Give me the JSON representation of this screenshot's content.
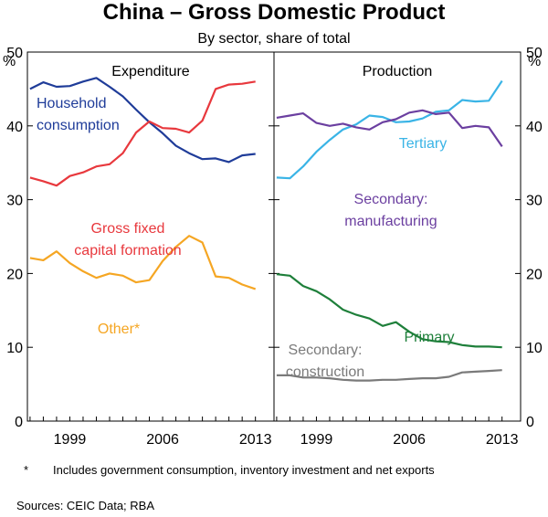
{
  "chart_data": {
    "type": "line",
    "title": "China – Gross Domestic Product",
    "subtitle": "By sector, share of total",
    "ylabel_left": "%",
    "ylabel_right": "%",
    "ylim": [
      0,
      50
    ],
    "yticks": [
      "0",
      "10",
      "20",
      "30",
      "40",
      "50"
    ],
    "xticks": [
      "1999",
      "2006",
      "2013"
    ],
    "xtick_values": [
      1999,
      2006,
      2013
    ],
    "xlim": [
      1995.8,
      2014.4
    ],
    "panels": [
      {
        "title": "Expenditure",
        "series": [
          {
            "name": "Household consumption",
            "label_lines": [
              "Household",
              "consumption"
            ],
            "color": "#1f3c99",
            "x": [
              1996,
              1997,
              1998,
              1999,
              2000,
              2001,
              2002,
              2003,
              2004,
              2005,
              2006,
              2007,
              2008,
              2009,
              2010,
              2011,
              2012,
              2013
            ],
            "values": [
              45.0,
              45.9,
              45.3,
              45.4,
              46.0,
              46.5,
              45.3,
              44.0,
              42.2,
              40.5,
              39.0,
              37.3,
              36.3,
              35.5,
              35.6,
              35.1,
              36.0,
              36.2
            ]
          },
          {
            "name": "Gross fixed capital formation",
            "label_lines": [
              "Gross fixed",
              "capital formation"
            ],
            "color": "#e8383d",
            "x": [
              1996,
              1997,
              1998,
              1999,
              2000,
              2001,
              2002,
              2003,
              2004,
              2005,
              2006,
              2007,
              2008,
              2009,
              2010,
              2011,
              2012,
              2013
            ],
            "values": [
              33.0,
              32.5,
              31.9,
              33.2,
              33.7,
              34.5,
              34.8,
              36.3,
              39.1,
              40.6,
              39.7,
              39.6,
              39.1,
              40.7,
              45.0,
              45.6,
              45.7,
              46.0
            ]
          },
          {
            "name": "Other*",
            "label_lines": [
              "Other*"
            ],
            "color": "#f5a623",
            "x": [
              1996,
              1997,
              1998,
              1999,
              2000,
              2001,
              2002,
              2003,
              2004,
              2005,
              2006,
              2007,
              2008,
              2009,
              2010,
              2011,
              2012,
              2013
            ],
            "values": [
              22.1,
              21.8,
              23.0,
              21.4,
              20.3,
              19.4,
              20.0,
              19.7,
              18.8,
              19.1,
              21.7,
              23.6,
              25.1,
              24.2,
              19.6,
              19.4,
              18.5,
              17.9
            ]
          }
        ]
      },
      {
        "title": "Production",
        "series": [
          {
            "name": "Tertiary",
            "label_lines": [
              "Tertiary"
            ],
            "color": "#3ab4e6",
            "x": [
              1996,
              1997,
              1998,
              1999,
              2000,
              2001,
              2002,
              2003,
              2004,
              2005,
              2006,
              2007,
              2008,
              2009,
              2010,
              2011,
              2012,
              2013
            ],
            "values": [
              33.0,
              32.9,
              34.5,
              36.5,
              38.1,
              39.5,
              40.2,
              41.4,
              41.2,
              40.5,
              40.6,
              41.0,
              41.9,
              42.1,
              43.5,
              43.3,
              43.4,
              46.1
            ]
          },
          {
            "name": "Secondary: manufacturing",
            "label_lines": [
              "Secondary:",
              "manufacturing"
            ],
            "color": "#6b3fa0",
            "x": [
              1996,
              1997,
              1998,
              1999,
              2000,
              2001,
              2002,
              2003,
              2004,
              2005,
              2006,
              2007,
              2008,
              2009,
              2010,
              2011,
              2012,
              2013
            ],
            "values": [
              41.1,
              41.4,
              41.7,
              40.4,
              40.0,
              40.3,
              39.8,
              39.5,
              40.5,
              40.9,
              41.8,
              42.1,
              41.6,
              41.8,
              39.7,
              40.0,
              39.8,
              37.2
            ]
          },
          {
            "name": "Primary",
            "label_lines": [
              "Primary"
            ],
            "color": "#1e7f3a",
            "x": [
              1996,
              1997,
              1998,
              1999,
              2000,
              2001,
              2002,
              2003,
              2004,
              2005,
              2006,
              2007,
              2008,
              2009,
              2010,
              2011,
              2012,
              2013
            ],
            "values": [
              19.9,
              19.7,
              18.3,
              17.6,
              16.5,
              15.1,
              14.4,
              13.9,
              12.9,
              13.4,
              12.1,
              11.1,
              10.8,
              10.7,
              10.3,
              10.1,
              10.1,
              10.0
            ]
          },
          {
            "name": "Secondary: construction",
            "label_lines": [
              "Secondary:",
              "construction"
            ],
            "color": "#7a7a7a",
            "x": [
              1996,
              1997,
              1998,
              1999,
              2000,
              2001,
              2002,
              2003,
              2004,
              2005,
              2006,
              2007,
              2008,
              2009,
              2010,
              2011,
              2012,
              2013
            ],
            "values": [
              6.2,
              6.2,
              5.9,
              5.9,
              5.8,
              5.6,
              5.5,
              5.5,
              5.6,
              5.6,
              5.7,
              5.8,
              5.8,
              6.0,
              6.6,
              6.7,
              6.8,
              6.9
            ]
          }
        ]
      }
    ]
  },
  "footnotes": {
    "mark": "*",
    "note": "Includes government consumption, inventory investment and net exports",
    "sources": "Sources:   CEIC Data; RBA"
  }
}
